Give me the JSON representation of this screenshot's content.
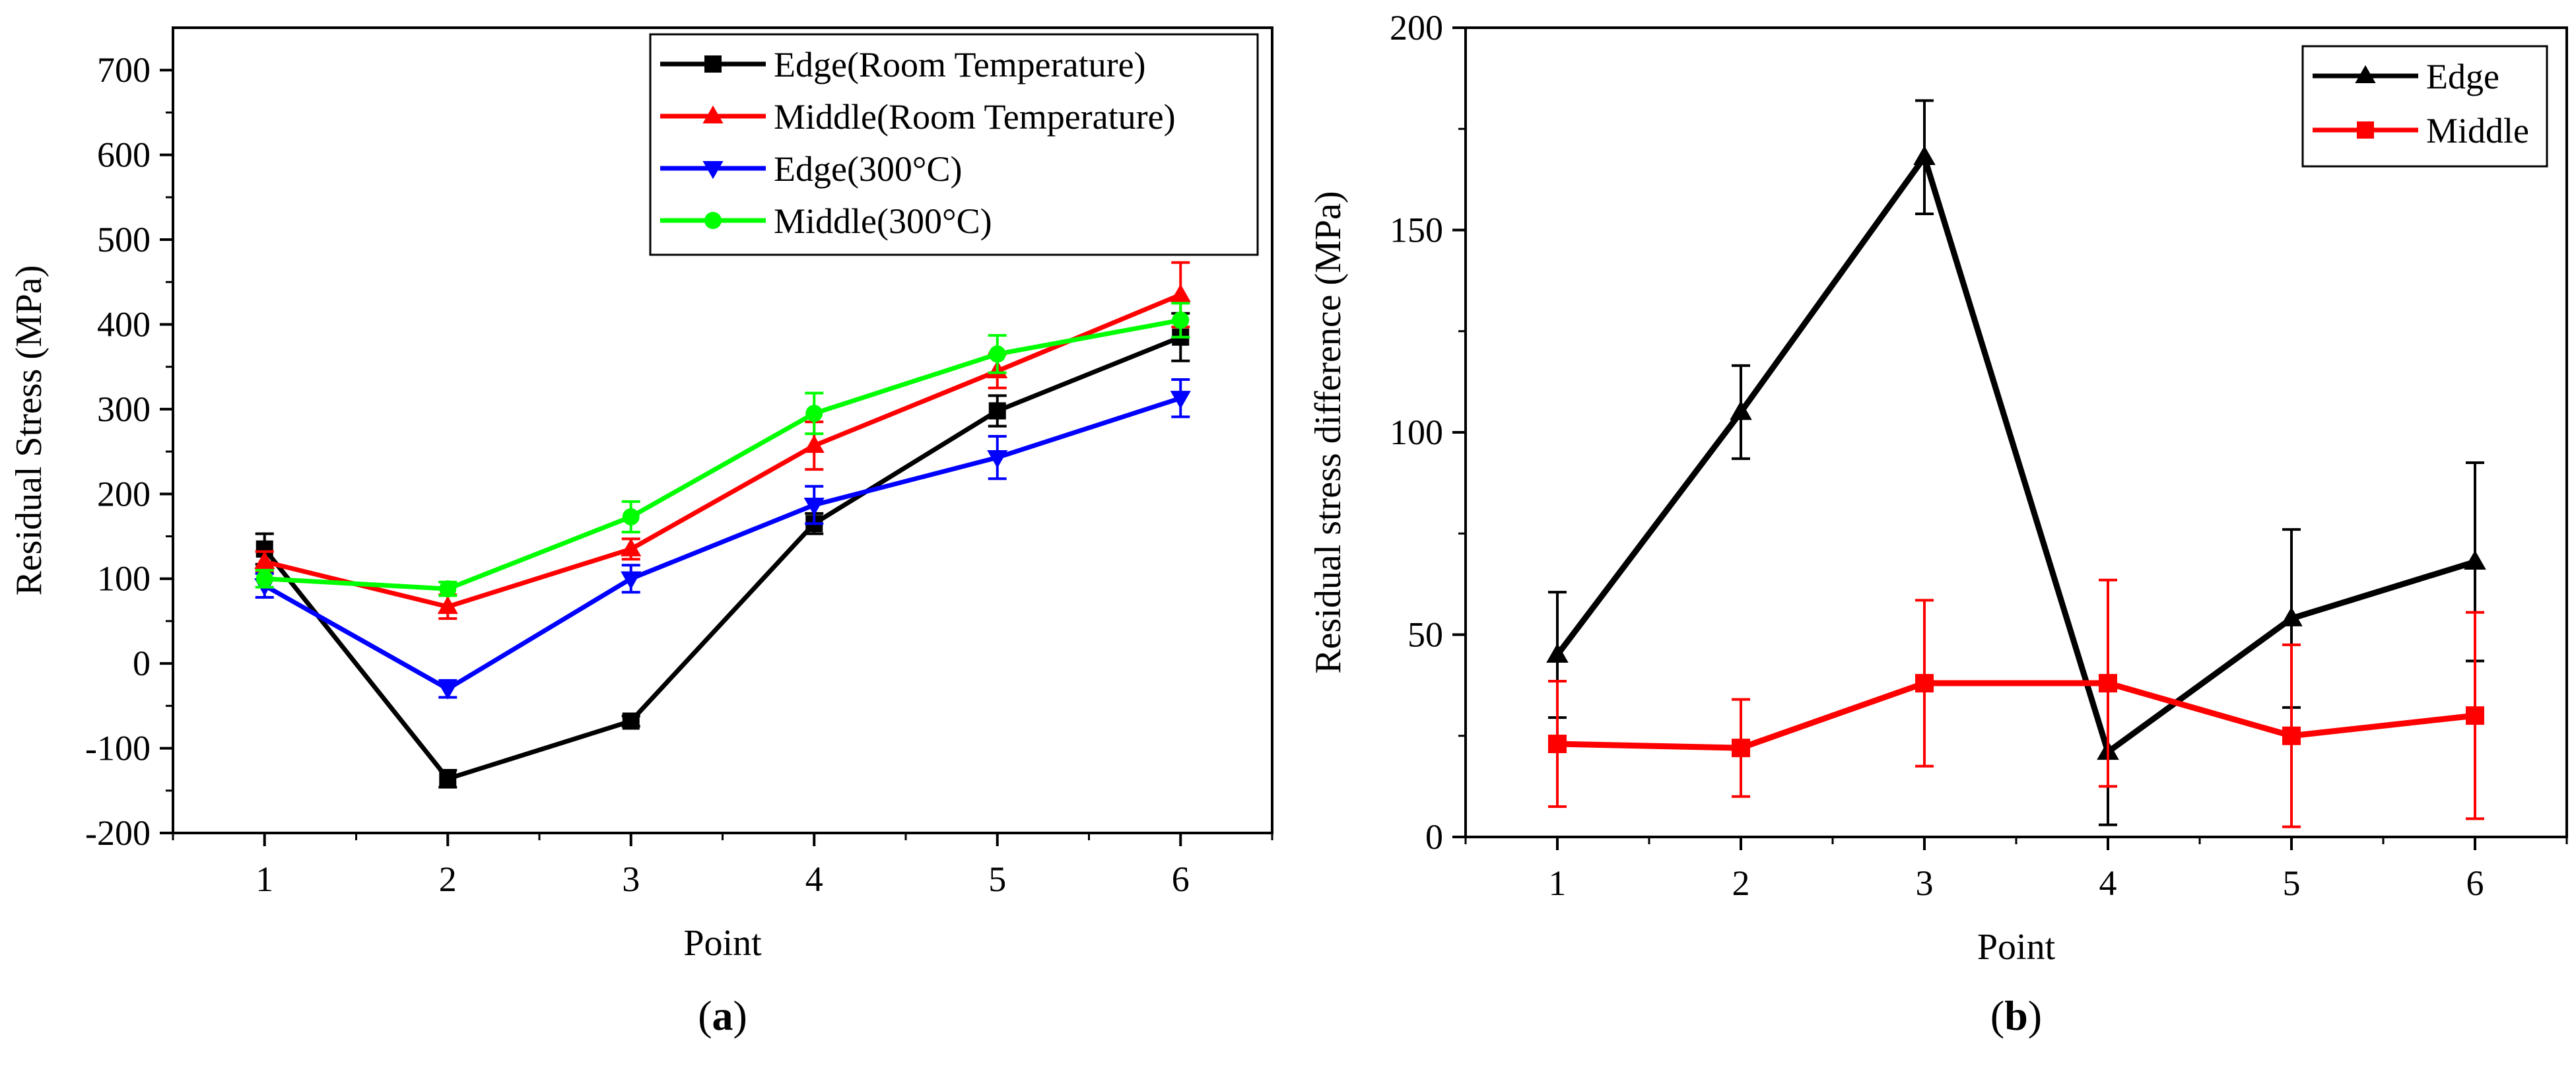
{
  "chart_data": [
    {
      "panel_label": "a",
      "type": "line",
      "xlabel": "Point",
      "ylabel": "Residual Stress (MPa)",
      "xlim": [
        0.5,
        6.5
      ],
      "ylim": [
        -200,
        750
      ],
      "x": [
        1,
        2,
        3,
        4,
        5,
        6
      ],
      "xticks": [
        1,
        2,
        3,
        4,
        5,
        6
      ],
      "yticks": [
        -200,
        -100,
        0,
        100,
        200,
        300,
        400,
        500,
        600,
        700
      ],
      "grid": false,
      "legend_position": "top-right",
      "series": [
        {
          "name": "Edge(Room Temperature)",
          "color": "#000000",
          "marker": "square",
          "values": [
            135,
            -136,
            -68,
            165,
            298,
            385
          ],
          "errors": [
            18,
            10,
            6,
            12,
            18,
            28
          ]
        },
        {
          "name": "Middle(Room Temperature)",
          "color": "#ff0000",
          "marker": "triangle-up",
          "values": [
            120,
            67,
            135,
            257,
            345,
            435
          ],
          "errors": [
            12,
            14,
            12,
            28,
            20,
            38
          ]
        },
        {
          "name": "Edge(300°C)",
          "color": "#0000ff",
          "marker": "triangle-down",
          "values": [
            92,
            -30,
            100,
            187,
            243,
            313
          ],
          "errors": [
            14,
            10,
            16,
            22,
            25,
            22
          ]
        },
        {
          "name": "Middle(300°C)",
          "color": "#00ff00",
          "marker": "circle",
          "values": [
            100,
            88,
            173,
            295,
            365,
            405
          ],
          "errors": [
            10,
            8,
            18,
            24,
            22,
            20
          ]
        }
      ]
    },
    {
      "panel_label": "b",
      "type": "line",
      "xlabel": "Point",
      "ylabel": "Residual stress difference (MPa)",
      "xlim": [
        0.5,
        6.5
      ],
      "ylim": [
        0,
        200
      ],
      "x": [
        1,
        2,
        3,
        4,
        5,
        6
      ],
      "xticks": [
        1,
        2,
        3,
        4,
        5,
        6
      ],
      "yticks": [
        0,
        50,
        100,
        150,
        200
      ],
      "grid": false,
      "legend_position": "top-right",
      "series": [
        {
          "name": "Edge",
          "color": "#000000",
          "marker": "triangle-up",
          "values": [
            45,
            105,
            168,
            21,
            54,
            68
          ],
          "errors": [
            15.5,
            11.5,
            14,
            18,
            22,
            24.5
          ]
        },
        {
          "name": "Middle",
          "color": "#ff0000",
          "marker": "square",
          "values": [
            23,
            22,
            38,
            38,
            25,
            30
          ],
          "errors": [
            15.5,
            12,
            20.5,
            25.5,
            22.5,
            25.5
          ]
        }
      ]
    }
  ]
}
